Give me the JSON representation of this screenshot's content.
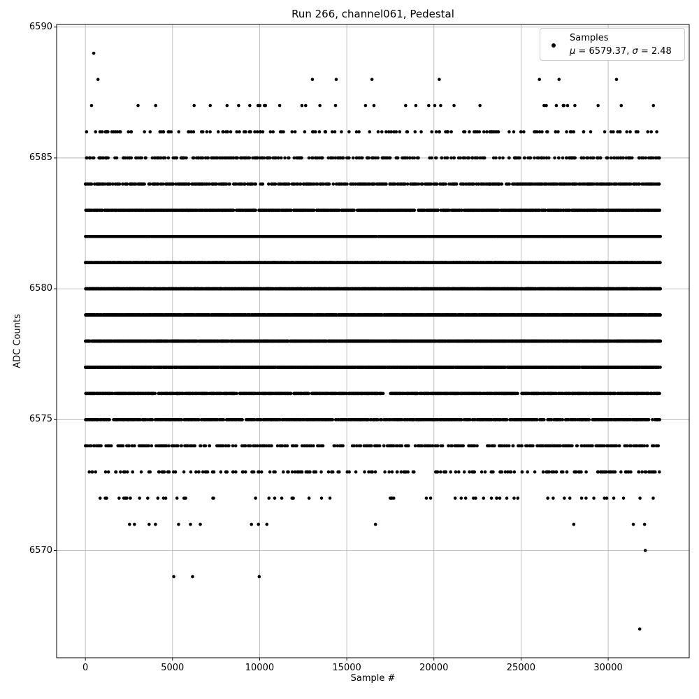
{
  "figure": {
    "background": "#ffffff",
    "spine_color": "#000000"
  },
  "chart_data": {
    "type": "scatter",
    "title": "Run 266, channel061, Pedestal",
    "xlabel": "Sample #",
    "ylabel": "ADC Counts",
    "xlim": [
      -1650,
      34650
    ],
    "ylim": [
      6565.9,
      6590.1
    ],
    "x_ticks": [
      0,
      5000,
      10000,
      15000,
      20000,
      25000,
      30000
    ],
    "y_ticks": [
      6570,
      6575,
      6580,
      6585,
      6590
    ],
    "grid": true,
    "grid_color": "#b0b0b0",
    "marker_color": "#000000",
    "marker_diameter_px": 4.6,
    "sample_min": 0,
    "sample_max": 33000,
    "legend": {
      "position": "upper right",
      "label": "Samples",
      "stats_text": "μ = 6579.37, σ = 2.48",
      "mu_symbol": "μ",
      "mu_text": " = 6579.37, ",
      "sigma_symbol": "σ",
      "sigma_text": " = 2.48"
    },
    "stats": {
      "mean": 6579.37,
      "sigma": 2.48
    },
    "seed": 1337,
    "bands": [
      {
        "adc": 6589,
        "samples": [
          480
        ]
      },
      {
        "adc": 6588,
        "samples": [
          724,
          13027,
          14395,
          16446,
          20306,
          26055,
          27181,
          30478
        ]
      },
      {
        "adc": 6587,
        "count": 36
      },
      {
        "adc": 6586,
        "count": 150
      },
      {
        "adc": 6585,
        "count": 380
      },
      {
        "adc": 6584,
        "count": 700
      },
      {
        "adc": 6583,
        "count": 1200
      },
      {
        "adc": 6582,
        "count": 2400
      },
      {
        "adc": 6581,
        "count": 3200
      },
      {
        "adc": 6580,
        "count": 3400
      },
      {
        "adc": 6579,
        "count": 3400
      },
      {
        "adc": 6578,
        "count": 3200
      },
      {
        "adc": 6577,
        "count": 2600
      },
      {
        "adc": 6576,
        "count": 1400,
        "gaps": [
          [
            17100,
            17500
          ]
        ]
      },
      {
        "adc": 6575,
        "count": 900
      },
      {
        "adc": 6574,
        "count": 420
      },
      {
        "adc": 6573,
        "count": 200
      },
      {
        "adc": 6572,
        "count": 60
      },
      {
        "adc": 6571,
        "samples": [
          2533,
          2815,
          3659,
          4021,
          5348,
          6031,
          6594,
          9530,
          9932,
          10414,
          16647,
          28025,
          31443,
          32086
        ]
      },
      {
        "adc": 6570,
        "samples": [
          32130
        ]
      },
      {
        "adc": 6569,
        "samples": [
          5070,
          6150,
          9975
        ]
      },
      {
        "adc": 6567,
        "samples": [
          31810
        ]
      }
    ]
  }
}
